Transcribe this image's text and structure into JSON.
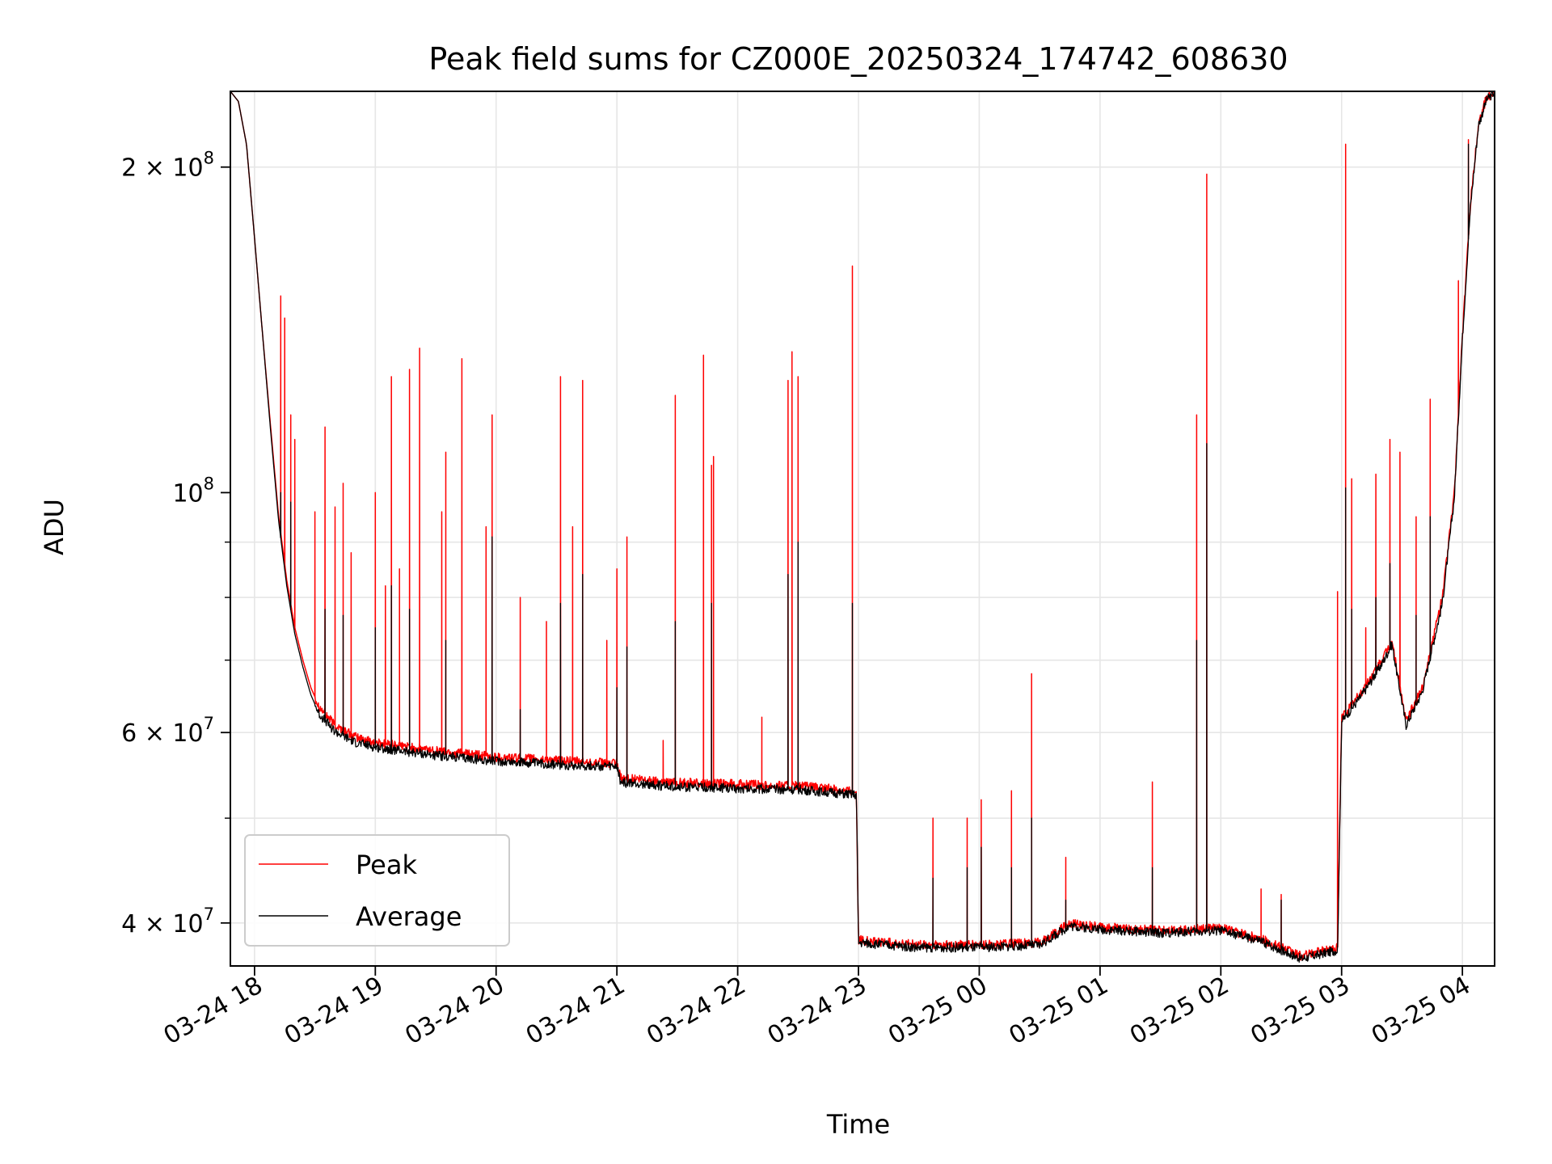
{
  "chart_data": {
    "type": "line",
    "title": "Peak field sums for CZ000E_20250324_174742_608630",
    "xlabel": "Time",
    "ylabel": "ADU",
    "x_axis": {
      "unit": "hours",
      "range": [
        "03-24 17:48",
        "03-25 04:16"
      ],
      "ticks": [
        "03-24 18",
        "03-24 19",
        "03-24 20",
        "03-24 21",
        "03-24 22",
        "03-24 23",
        "03-25 00",
        "03-25 01",
        "03-25 02",
        "03-25 03",
        "03-25 04"
      ]
    },
    "y_axis": {
      "scale": "log",
      "range": [
        36500000,
        235000000
      ],
      "ticks": [
        {
          "value": 40000000,
          "base": "4 × 10",
          "exp": "7"
        },
        {
          "value": 60000000,
          "base": "6 × 10",
          "exp": "7"
        },
        {
          "value": 100000000,
          "base": "10",
          "exp": "8"
        },
        {
          "value": 200000000,
          "base": "2 × 10",
          "exp": "8"
        }
      ]
    },
    "grid": true,
    "legend": "lower-left",
    "series": [
      {
        "name": "Peak",
        "color": "#ff0000",
        "baseline": [
          [
            "03-24 17:48",
            235000000
          ],
          [
            "03-24 17:52",
            230000000
          ],
          [
            "03-24 17:56",
            210000000
          ],
          [
            "03-24 18:00",
            172000000
          ],
          [
            "03-24 18:04",
            140000000
          ],
          [
            "03-24 18:08",
            115000000
          ],
          [
            "03-24 18:12",
            95000000
          ],
          [
            "03-24 18:16",
            83000000
          ],
          [
            "03-24 18:20",
            75000000
          ],
          [
            "03-24 18:24",
            70000000
          ],
          [
            "03-24 18:28",
            66000000
          ],
          [
            "03-24 18:32",
            63500000
          ],
          [
            "03-24 18:40",
            61000000
          ],
          [
            "03-24 18:50",
            59500000
          ],
          [
            "03-24 19:00",
            58800000
          ],
          [
            "03-24 19:30",
            57800000
          ],
          [
            "03-24 20:00",
            57000000
          ],
          [
            "03-24 20:30",
            56600000
          ],
          [
            "03-24 21:00",
            56200000
          ],
          [
            "03-24 21:02",
            54500000
          ],
          [
            "03-24 21:30",
            54000000
          ],
          [
            "03-24 22:00",
            53800000
          ],
          [
            "03-24 22:30",
            53600000
          ],
          [
            "03-24 22:59",
            53000000
          ],
          [
            "03-24 23:00",
            38600000
          ],
          [
            "03-24 23:30",
            38200000
          ],
          [
            "03-25 00:00",
            38200000
          ],
          [
            "03-25 00:30",
            38400000
          ],
          [
            "03-25 00:45",
            40000000
          ],
          [
            "03-25 01:00",
            39700000
          ],
          [
            "03-25 01:30",
            39400000
          ],
          [
            "03-25 02:00",
            39600000
          ],
          [
            "03-25 02:20",
            38700000
          ],
          [
            "03-25 02:40",
            37300000
          ],
          [
            "03-25 02:58",
            38000000
          ],
          [
            "03-25 03:00",
            62000000
          ],
          [
            "03-25 03:10",
            65500000
          ],
          [
            "03-25 03:20",
            70000000
          ],
          [
            "03-25 03:25",
            73000000
          ],
          [
            "03-25 03:32",
            61500000
          ],
          [
            "03-25 03:40",
            66000000
          ],
          [
            "03-25 03:50",
            80000000
          ],
          [
            "03-25 03:56",
            100000000
          ],
          [
            "03-25 04:00",
            140000000
          ],
          [
            "03-25 04:04",
            185000000
          ],
          [
            "03-25 04:08",
            220000000
          ],
          [
            "03-25 04:12",
            232000000
          ],
          [
            "03-25 04:16",
            235000000
          ]
        ],
        "spikes": [
          [
            "03-24 18:13",
            152000000
          ],
          [
            "03-24 18:15",
            145000000
          ],
          [
            "03-24 18:18",
            118000000
          ],
          [
            "03-24 18:20",
            112000000
          ],
          [
            "03-24 18:30",
            96000000
          ],
          [
            "03-24 18:35",
            115000000
          ],
          [
            "03-24 18:40",
            97000000
          ],
          [
            "03-24 18:44",
            102000000
          ],
          [
            "03-24 18:48",
            88000000
          ],
          [
            "03-24 19:00",
            100000000
          ],
          [
            "03-24 19:05",
            82000000
          ],
          [
            "03-24 19:08",
            128000000
          ],
          [
            "03-24 19:12",
            85000000
          ],
          [
            "03-24 19:17",
            130000000
          ],
          [
            "03-24 19:22",
            136000000
          ],
          [
            "03-24 19:33",
            96000000
          ],
          [
            "03-24 19:35",
            109000000
          ],
          [
            "03-24 19:43",
            133000000
          ],
          [
            "03-24 19:55",
            93000000
          ],
          [
            "03-24 19:58",
            118000000
          ],
          [
            "03-24 20:12",
            80000000
          ],
          [
            "03-24 20:25",
            76000000
          ],
          [
            "03-24 20:32",
            128000000
          ],
          [
            "03-24 20:38",
            93000000
          ],
          [
            "03-24 20:43",
            127000000
          ],
          [
            "03-24 20:55",
            73000000
          ],
          [
            "03-24 21:00",
            85000000
          ],
          [
            "03-24 21:05",
            91000000
          ],
          [
            "03-24 21:23",
            59000000
          ],
          [
            "03-24 21:29",
            123000000
          ],
          [
            "03-24 21:43",
            134000000
          ],
          [
            "03-24 21:47",
            106000000
          ],
          [
            "03-24 21:48",
            108000000
          ],
          [
            "03-24 22:12",
            62000000
          ],
          [
            "03-24 22:25",
            127000000
          ],
          [
            "03-24 22:27",
            135000000
          ],
          [
            "03-24 22:30",
            128000000
          ],
          [
            "03-24 22:57",
            162000000
          ],
          [
            "03-24 23:37",
            50000000
          ],
          [
            "03-24 23:54",
            50000000
          ],
          [
            "03-25 00:01",
            52000000
          ],
          [
            "03-25 00:16",
            53000000
          ],
          [
            "03-25 00:26",
            68000000
          ],
          [
            "03-25 00:43",
            46000000
          ],
          [
            "03-25 01:26",
            54000000
          ],
          [
            "03-25 01:48",
            118000000
          ],
          [
            "03-25 01:53",
            197000000
          ],
          [
            "03-25 02:20",
            43000000
          ],
          [
            "03-25 02:30",
            42500000
          ],
          [
            "03-25 02:58",
            81000000
          ],
          [
            "03-25 03:02",
            210000000
          ],
          [
            "03-25 03:05",
            103000000
          ],
          [
            "03-25 03:12",
            75000000
          ],
          [
            "03-25 03:17",
            104000000
          ],
          [
            "03-25 03:24",
            112000000
          ],
          [
            "03-25 03:29",
            109000000
          ],
          [
            "03-25 03:37",
            95000000
          ],
          [
            "03-25 03:44",
            122000000
          ],
          [
            "03-25 03:58",
            157000000
          ],
          [
            "03-25 04:03",
            212000000
          ]
        ]
      },
      {
        "name": "Average",
        "color": "#000000",
        "baseline": [
          [
            "03-24 17:48",
            235000000
          ],
          [
            "03-24 17:52",
            230000000
          ],
          [
            "03-24 17:56",
            210000000
          ],
          [
            "03-24 18:00",
            172000000
          ],
          [
            "03-24 18:04",
            140000000
          ],
          [
            "03-24 18:08",
            114000000
          ],
          [
            "03-24 18:12",
            94000000
          ],
          [
            "03-24 18:16",
            82000000
          ],
          [
            "03-24 18:20",
            74000000
          ],
          [
            "03-24 18:24",
            69000000
          ],
          [
            "03-24 18:28",
            65000000
          ],
          [
            "03-24 18:32",
            62500000
          ],
          [
            "03-24 18:40",
            60200000
          ],
          [
            "03-24 18:50",
            58800000
          ],
          [
            "03-24 19:00",
            58200000
          ],
          [
            "03-24 19:30",
            57200000
          ],
          [
            "03-24 20:00",
            56500000
          ],
          [
            "03-24 20:30",
            56100000
          ],
          [
            "03-24 21:00",
            55800000
          ],
          [
            "03-24 21:02",
            54000000
          ],
          [
            "03-24 21:30",
            53500000
          ],
          [
            "03-24 22:00",
            53300000
          ],
          [
            "03-24 22:30",
            53200000
          ],
          [
            "03-24 22:59",
            52600000
          ],
          [
            "03-24 23:00",
            38400000
          ],
          [
            "03-24 23:30",
            38000000
          ],
          [
            "03-25 00:00",
            38000000
          ],
          [
            "03-25 00:30",
            38200000
          ],
          [
            "03-25 00:45",
            39800000
          ],
          [
            "03-25 01:00",
            39500000
          ],
          [
            "03-25 01:30",
            39200000
          ],
          [
            "03-25 02:00",
            39400000
          ],
          [
            "03-25 02:20",
            38500000
          ],
          [
            "03-25 02:40",
            37100000
          ],
          [
            "03-25 02:58",
            37800000
          ],
          [
            "03-25 03:00",
            61500000
          ],
          [
            "03-25 03:10",
            65000000
          ],
          [
            "03-25 03:20",
            69500000
          ],
          [
            "03-25 03:25",
            72500000
          ],
          [
            "03-25 03:32",
            61000000
          ],
          [
            "03-25 03:40",
            65500000
          ],
          [
            "03-25 03:50",
            79000000
          ],
          [
            "03-25 03:56",
            99000000
          ],
          [
            "03-25 04:00",
            139000000
          ],
          [
            "03-25 04:04",
            184000000
          ],
          [
            "03-25 04:08",
            219000000
          ],
          [
            "03-25 04:12",
            231000000
          ],
          [
            "03-25 04:16",
            235000000
          ]
        ],
        "spikes": [
          [
            "03-24 18:13",
            100000000
          ],
          [
            "03-24 18:18",
            98000000
          ],
          [
            "03-24 18:35",
            78000000
          ],
          [
            "03-24 18:44",
            77000000
          ],
          [
            "03-24 19:00",
            75000000
          ],
          [
            "03-24 19:08",
            82000000
          ],
          [
            "03-24 19:17",
            78000000
          ],
          [
            "03-24 19:35",
            73000000
          ],
          [
            "03-24 19:58",
            91000000
          ],
          [
            "03-24 20:12",
            63000000
          ],
          [
            "03-24 20:32",
            79000000
          ],
          [
            "03-24 20:43",
            84000000
          ],
          [
            "03-24 21:00",
            66000000
          ],
          [
            "03-24 21:05",
            72000000
          ],
          [
            "03-24 21:29",
            76000000
          ],
          [
            "03-24 21:47",
            79000000
          ],
          [
            "03-24 22:25",
            84000000
          ],
          [
            "03-24 22:30",
            90000000
          ],
          [
            "03-24 22:57",
            79000000
          ],
          [
            "03-24 23:37",
            44000000
          ],
          [
            "03-24 23:54",
            45000000
          ],
          [
            "03-25 00:01",
            47000000
          ],
          [
            "03-25 00:16",
            45000000
          ],
          [
            "03-25 00:26",
            50000000
          ],
          [
            "03-25 00:43",
            42000000
          ],
          [
            "03-25 01:26",
            45000000
          ],
          [
            "03-25 01:48",
            73000000
          ],
          [
            "03-25 01:53",
            111000000
          ],
          [
            "03-25 02:30",
            42000000
          ],
          [
            "03-25 03:02",
            101000000
          ],
          [
            "03-25 03:05",
            78000000
          ],
          [
            "03-25 03:17",
            80000000
          ],
          [
            "03-25 03:24",
            86000000
          ],
          [
            "03-25 03:37",
            77000000
          ],
          [
            "03-25 03:44",
            95000000
          ],
          [
            "03-25 04:03",
            210000000
          ]
        ]
      }
    ]
  }
}
